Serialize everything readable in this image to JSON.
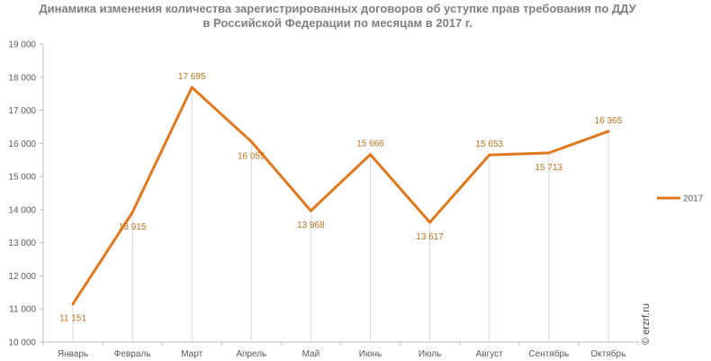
{
  "chart_data": {
    "type": "line",
    "title_line1": "Динамика изменения количества зарегистрированных договоров об уступке прав требования по ДДУ",
    "title_line2": "в Российской Федерации по месяцам в 2017 г.",
    "categories": [
      "Январь",
      "Февраль",
      "Март",
      "Апрель",
      "Май",
      "Июнь",
      "Июль",
      "Август",
      "Сентябрь",
      "Октябрь"
    ],
    "series": [
      {
        "name": "2017",
        "values": [
          11151,
          13915,
          17695,
          16055,
          13968,
          15666,
          13617,
          15653,
          15713,
          16365
        ],
        "labels": [
          "11 151",
          "13 915",
          "17 695",
          "16 055",
          "13 968",
          "15 666",
          "13 617",
          "15 653",
          "15 713",
          "16 365"
        ],
        "color": "#e0781e"
      }
    ],
    "ylim": [
      10000,
      19000
    ],
    "yticks": [
      10000,
      11000,
      12000,
      13000,
      14000,
      15000,
      16000,
      17000,
      18000,
      19000
    ],
    "ytick_labels": [
      "10 000",
      "11 000",
      "12 000",
      "13 000",
      "14 000",
      "15 000",
      "16 000",
      "17 000",
      "18 000",
      "19 000"
    ],
    "grid": "vertical drop lines",
    "legend_position": "right"
  },
  "watermark": "© erzrf.ru",
  "colors": {
    "line": "#e0781e",
    "label": "#c0711e",
    "axis": "#bfbfbf",
    "text": "#595959"
  }
}
